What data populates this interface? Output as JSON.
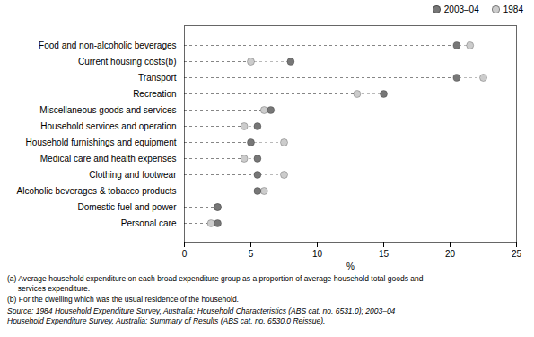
{
  "chart_data": {
    "type": "dot",
    "categories": [
      "Food and non-alcoholic beverages",
      "Current housing costs(b)",
      "Transport",
      "Recreation",
      "Miscellaneous goods and services",
      "Household services and operation",
      "Household furnishings and equipment",
      "Medical care and health expenses",
      "Clothing and footwear",
      "Alcoholic beverages & tobacco products",
      "Domestic fuel and power",
      "Personal care"
    ],
    "series": [
      {
        "name": "2003–04",
        "color": "#777777",
        "values": [
          20.5,
          8.0,
          20.5,
          15.0,
          6.5,
          5.5,
          5.0,
          5.5,
          5.5,
          5.5,
          2.5,
          2.5
        ]
      },
      {
        "name": "1984",
        "color": "#cccccc",
        "values": [
          21.5,
          5.0,
          22.5,
          13.0,
          6.0,
          4.5,
          7.5,
          4.5,
          7.5,
          6.0,
          2.5,
          2.0
        ]
      }
    ],
    "xlabel": "%",
    "xlim": [
      0,
      25
    ],
    "xticks": [
      0,
      5,
      10,
      15,
      20,
      25
    ],
    "line_style": "dashed",
    "legend": "right",
    "grid": false,
    "annotations": [
      "(a) Average household expenditure on each broad expenditure group as a proportion of average household total goods and\n     services expenditure.",
      "(b) For the dwelling which was the usual residence of the household.",
      "Source: 1984 Household Expenditure Survey, Australia: Household Characteristics (ABS cat. no. 6531.0); 2003–04\nHousehold Expenditure Survey, Australia: Summary of Results (ABS cat. no. 6530.0 Reissue)."
    ]
  }
}
